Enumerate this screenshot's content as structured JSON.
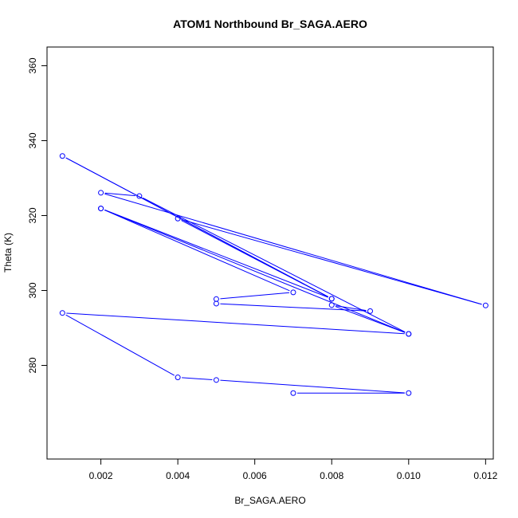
{
  "chart_data": {
    "type": "line",
    "title": "ATOM1 Northbound Br_SAGA.AERO",
    "xlabel": "Br_SAGA.AERO",
    "ylabel": "Theta (K)",
    "xlim": [
      0.0006,
      0.0122
    ],
    "ylim": [
      255,
      365
    ],
    "xticks": [
      0.002,
      0.004,
      0.006,
      0.008,
      0.01,
      0.012
    ],
    "xtick_labels": [
      "0.002",
      "0.004",
      "0.006",
      "0.008",
      "0.010",
      "0.012"
    ],
    "yticks": [
      280,
      300,
      320,
      340,
      360
    ],
    "ytick_labels": [
      "280",
      "300",
      "320",
      "340",
      "360"
    ],
    "grid": false,
    "series": [
      {
        "color": "#0000ff",
        "marker": "circle-open",
        "x": [
          0.007,
          0.01,
          0.005,
          0.004,
          0.001,
          0.01,
          0.008,
          0.009,
          0.005,
          0.005,
          0.007,
          0.002,
          0.01,
          0.003,
          0.002,
          0.012,
          0.004,
          0.008,
          0.001,
          0.008,
          0.002
        ],
        "y": [
          272.6,
          272.6,
          276.1,
          276.8,
          294.0,
          288.4,
          296.1,
          294.5,
          296.5,
          297.7,
          299.5,
          321.9,
          288.4,
          325.2,
          326.1,
          296.0,
          319.2,
          297.8,
          335.9,
          297.8,
          321.9
        ]
      }
    ]
  }
}
